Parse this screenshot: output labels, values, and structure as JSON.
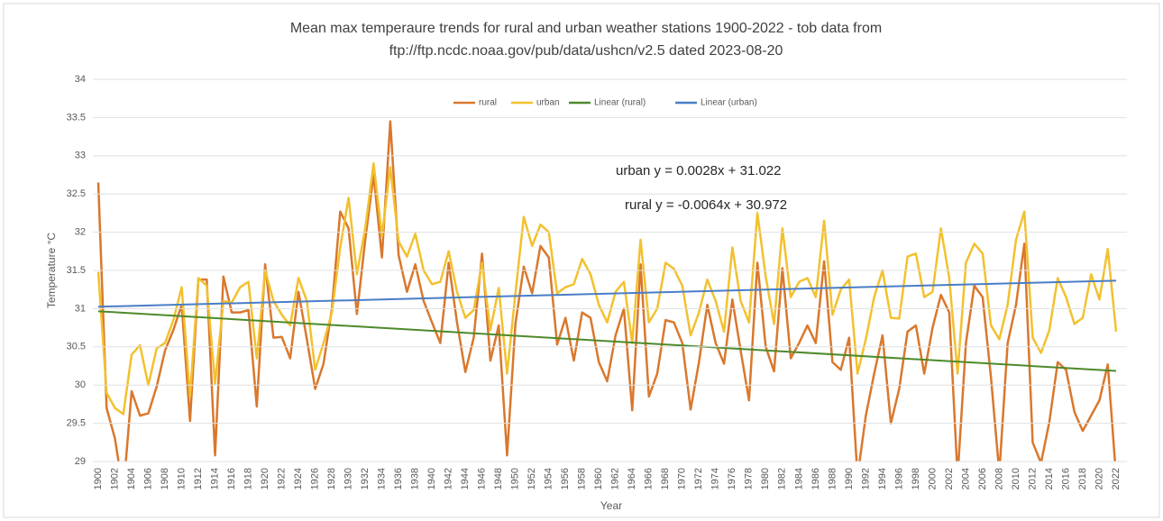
{
  "chart_data": {
    "type": "line",
    "title": [
      "Mean max temperaure trends for rural and urban weather stations 1900-2022 - tob data from",
      "ftp://ftp.ncdc.noaa.gov/pub/data/ushcn/v2.5 dated 2023-08-20"
    ],
    "xlabel": "Year",
    "ylabel": "Temperature °C",
    "categories": [
      1900,
      null,
      1902,
      null,
      1904,
      null,
      1906,
      null,
      1908,
      null,
      1910,
      null,
      1912,
      null,
      1914,
      null,
      1916,
      null,
      1918,
      null,
      1920,
      null,
      1922,
      null,
      1924,
      null,
      1926,
      null,
      1928,
      null,
      1930,
      null,
      1932,
      null,
      1934,
      null,
      1936,
      null,
      1938,
      null,
      1940,
      null,
      1942,
      null,
      1944,
      null,
      1946,
      null,
      1948,
      null,
      1950,
      null,
      1952,
      null,
      1954,
      null,
      1956,
      null,
      1958,
      null,
      1960,
      null,
      1962,
      null,
      1964,
      null,
      1966,
      null,
      1968,
      null,
      1970,
      null,
      1972,
      null,
      1974,
      null,
      1976,
      null,
      1978,
      null,
      1980,
      null,
      1982,
      null,
      1984,
      null,
      1986,
      null,
      1988,
      null,
      1990,
      null,
      1992,
      null,
      1994,
      null,
      1996,
      null,
      1998,
      null,
      2000,
      null,
      2002,
      null,
      2004,
      null,
      2006,
      null,
      2008,
      null,
      2010,
      null,
      2012,
      null,
      2014,
      null,
      2016,
      null,
      2018,
      null,
      2020,
      null,
      2022
    ],
    "series": [
      {
        "name": "rural",
        "color": "#d9782d",
        "values": [
          32.65,
          29.7,
          29.3,
          28.6,
          29.92,
          29.6,
          29.63,
          29.98,
          30.45,
          30.72,
          31.05,
          29.53,
          31.38,
          31.38,
          29.08,
          31.42,
          30.95,
          30.95,
          30.98,
          29.72,
          31.58,
          30.62,
          30.63,
          30.35,
          31.22,
          30.6,
          29.95,
          30.28,
          31.0,
          32.27,
          32.05,
          30.93,
          31.9,
          32.75,
          31.67,
          33.45,
          31.7,
          31.22,
          31.58,
          31.1,
          30.82,
          30.55,
          31.6,
          30.82,
          30.17,
          30.62,
          31.72,
          30.32,
          30.78,
          29.08,
          30.8,
          31.55,
          31.2,
          31.82,
          31.67,
          30.53,
          30.88,
          30.32,
          30.95,
          30.88,
          30.3,
          30.05,
          30.65,
          31.0,
          29.67,
          31.58,
          29.85,
          30.15,
          30.85,
          30.82,
          30.55,
          29.68,
          30.3,
          31.05,
          30.55,
          30.28,
          31.12,
          30.45,
          29.8,
          31.6,
          30.5,
          30.18,
          31.53,
          30.35,
          30.55,
          30.78,
          30.55,
          31.62,
          30.3,
          30.2,
          30.62,
          28.8,
          29.6,
          30.15,
          30.65,
          29.5,
          29.95,
          30.7,
          30.78,
          30.15,
          30.75,
          31.18,
          30.95,
          28.8,
          30.55,
          31.3,
          31.15,
          30.1,
          28.85,
          30.55,
          31.05,
          31.85,
          29.25,
          28.98,
          29.52,
          30.3,
          30.2,
          29.65,
          29.4,
          29.6,
          29.8,
          30.27,
          28.8
        ]
      },
      {
        "name": "urban",
        "color": "#f2c12e",
        "values": [
          31.48,
          29.9,
          29.7,
          29.62,
          30.4,
          30.52,
          30.0,
          30.48,
          30.55,
          30.85,
          31.28,
          29.85,
          31.4,
          31.3,
          30.02,
          31.1,
          31.08,
          31.28,
          31.35,
          30.35,
          31.5,
          31.1,
          30.92,
          30.78,
          31.4,
          31.1,
          30.2,
          30.55,
          30.95,
          31.8,
          32.45,
          31.45,
          32.05,
          32.9,
          31.95,
          32.85,
          31.88,
          31.68,
          31.98,
          31.5,
          31.32,
          31.35,
          31.75,
          31.22,
          30.88,
          30.98,
          31.6,
          30.72,
          31.27,
          30.15,
          31.2,
          32.2,
          31.82,
          32.1,
          32.0,
          31.2,
          31.28,
          31.32,
          31.65,
          31.45,
          31.05,
          30.82,
          31.22,
          31.35,
          30.55,
          31.9,
          30.82,
          31.0,
          31.6,
          31.52,
          31.3,
          30.65,
          30.95,
          31.38,
          31.1,
          30.7,
          31.8,
          31.1,
          30.82,
          32.25,
          31.42,
          30.8,
          32.05,
          31.15,
          31.35,
          31.4,
          31.15,
          32.15,
          30.92,
          31.25,
          31.38,
          30.15,
          30.6,
          31.15,
          31.5,
          30.88,
          30.87,
          31.68,
          31.72,
          31.15,
          31.22,
          32.05,
          31.4,
          30.15,
          31.6,
          31.85,
          31.72,
          30.78,
          30.6,
          31.05,
          31.9,
          32.27,
          30.62,
          30.42,
          30.72,
          31.4,
          31.15,
          30.8,
          30.88,
          31.45,
          31.12,
          31.78,
          30.7
        ]
      },
      {
        "name": "Linear (rural)",
        "color": "#4d8a2a",
        "slope": -0.0064,
        "intercept": 30.972
      },
      {
        "name": "Linear (urban)",
        "color": "#4a7ec6",
        "slope": 0.0028,
        "intercept": 31.022
      }
    ],
    "annotations": [
      "urban y = 0.0028x + 31.022",
      "rural y = -0.0064x + 30.972"
    ],
    "ylim": [
      29,
      34
    ],
    "yticks": [
      29,
      29.5,
      30,
      30.5,
      31,
      31.5,
      32,
      32.5,
      33,
      33.5,
      34
    ],
    "grid": true,
    "legend": "top"
  }
}
